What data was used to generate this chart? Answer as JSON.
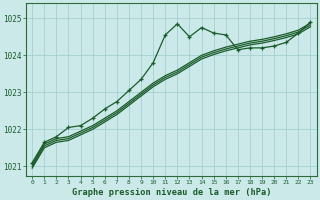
{
  "title": "Graphe pression niveau de la mer (hPa)",
  "bg_color": "#cbe9e9",
  "grid_color": "#a0cccc",
  "line_color": "#1a5c2a",
  "border_color": "#2d6b3a",
  "xlim": [
    -0.5,
    23.5
  ],
  "ylim": [
    1020.75,
    1025.4
  ],
  "yticks": [
    1021,
    1022,
    1023,
    1024,
    1025
  ],
  "xticks": [
    0,
    1,
    2,
    3,
    4,
    5,
    6,
    7,
    8,
    9,
    10,
    11,
    12,
    13,
    14,
    15,
    16,
    17,
    18,
    19,
    20,
    21,
    22,
    23
  ],
  "s1_x": [
    0,
    1,
    2,
    3,
    4,
    5,
    6,
    7,
    8,
    9,
    10,
    11,
    12,
    13,
    14,
    15,
    16,
    17,
    18,
    19,
    20,
    21,
    22,
    23
  ],
  "s1_y": [
    1021.1,
    1021.65,
    1021.8,
    1022.05,
    1022.1,
    1022.3,
    1022.55,
    1022.75,
    1023.05,
    1023.35,
    1023.8,
    1024.55,
    1024.85,
    1024.5,
    1024.75,
    1024.6,
    1024.55,
    1024.15,
    1024.2,
    1024.2,
    1024.25,
    1024.35,
    1024.6,
    1024.9
  ],
  "s2_x": [
    0,
    1,
    2,
    3,
    4,
    5,
    6,
    7,
    8,
    9,
    10,
    11,
    12,
    13,
    14,
    15,
    16,
    17,
    18,
    19,
    20,
    21,
    22,
    23
  ],
  "s2_y": [
    1021.05,
    1021.6,
    1021.75,
    1021.8,
    1021.95,
    1022.1,
    1022.3,
    1022.5,
    1022.75,
    1023.0,
    1023.25,
    1023.45,
    1023.6,
    1023.8,
    1024.0,
    1024.12,
    1024.22,
    1024.3,
    1024.38,
    1024.43,
    1024.5,
    1024.58,
    1024.68,
    1024.87
  ],
  "s3_x": [
    0,
    1,
    2,
    3,
    4,
    5,
    6,
    7,
    8,
    9,
    10,
    11,
    12,
    13,
    14,
    15,
    16,
    17,
    18,
    19,
    20,
    21,
    22,
    23
  ],
  "s3_y": [
    1021.0,
    1021.55,
    1021.7,
    1021.75,
    1021.9,
    1022.05,
    1022.25,
    1022.45,
    1022.7,
    1022.95,
    1023.2,
    1023.4,
    1023.55,
    1023.75,
    1023.95,
    1024.07,
    1024.17,
    1024.25,
    1024.33,
    1024.38,
    1024.45,
    1024.53,
    1024.63,
    1024.82
  ],
  "s4_x": [
    0,
    1,
    2,
    3,
    4,
    5,
    6,
    7,
    8,
    9,
    10,
    11,
    12,
    13,
    14,
    15,
    16,
    17,
    18,
    19,
    20,
    21,
    22,
    23
  ],
  "s4_y": [
    1020.95,
    1021.5,
    1021.65,
    1021.7,
    1021.85,
    1022.0,
    1022.2,
    1022.4,
    1022.65,
    1022.9,
    1023.15,
    1023.35,
    1023.5,
    1023.7,
    1023.9,
    1024.02,
    1024.12,
    1024.2,
    1024.28,
    1024.33,
    1024.4,
    1024.48,
    1024.58,
    1024.77
  ]
}
